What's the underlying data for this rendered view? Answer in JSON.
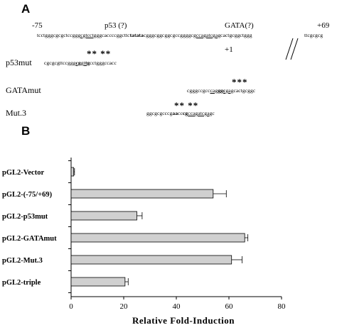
{
  "panel_a": {
    "letter": "A",
    "pos_start": "-75",
    "pos_end": "+69",
    "pos_tss": "+1",
    "site_p53": "p53 (?)",
    "site_gata": "GATA(?)",
    "wt_seq": {
      "p1": "tcctgggcgcgctcc",
      "p2": "gggcgtcctgg",
      "p3": "gcaccccggcttc",
      "p4": "tatata",
      "p5": "cgggcggcggcgccggggcg",
      "p6": "ccagatcgag",
      "p7": "cactgcggctggg",
      "p8": "ttcgcgcg"
    },
    "mutants": [
      {
        "label": "p53mut",
        "stars": "** **",
        "s1": "cgcgcgttcc",
        "s2": "ggg",
        "s3": "cg",
        "s4": "gt",
        "s5": "tg",
        "s6": "cctgggccacc"
      },
      {
        "label": "GATAmut",
        "stars": "***",
        "s1": "cgggccgcc",
        "s2": "cag",
        "s3": "ggc",
        "s4": "gag",
        "s5": "cactgcggc"
      },
      {
        "label": "Mut.3",
        "stars": "** **",
        "s1": "ggcgcgcccg",
        "s2": "aa",
        "s3": "cc",
        "s4": "cg",
        "s5": "ccagatcgag",
        "s6": "c"
      }
    ]
  },
  "panel_b": {
    "letter": "B"
  },
  "chart_data": {
    "type": "bar",
    "orientation": "horizontal",
    "categories": [
      "pGL2-Vector",
      "pGL2-(-75/+69)",
      "pGL2-p53mut",
      "pGL2-GATAmut",
      "pGL2-Mut.3",
      "pGL2-triple"
    ],
    "values": [
      1,
      54,
      25,
      66,
      61,
      20.5
    ],
    "errors": [
      0.3,
      5,
      2,
      1.2,
      4,
      1.2
    ],
    "xlabel": "Relative Fold-Induction",
    "xlim": [
      0,
      80
    ],
    "xticks": [
      0,
      20,
      40,
      60,
      80
    ],
    "bar_color": "#d0d0d0",
    "edge_color": "#000000"
  }
}
